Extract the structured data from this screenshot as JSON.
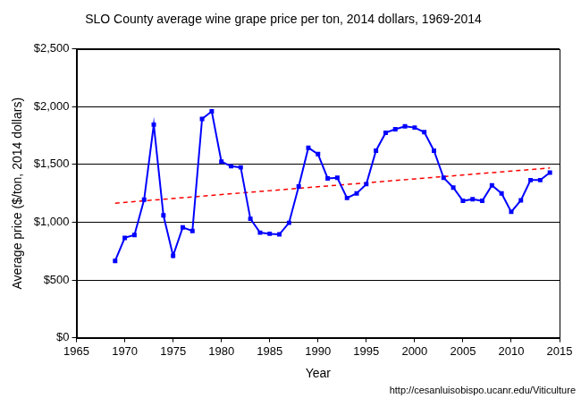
{
  "chart_data": {
    "type": "line",
    "title": "SLO County average wine grape price per ton, 2014 dollars, 1969-2014",
    "x_label": "Year",
    "y_label": "Average price ($/ton, 2014 dollars)",
    "annotation": "http://cesanluisobispo.ucanr.edu/Viticulture",
    "x": [
      1969,
      1970,
      1971,
      1972,
      1973,
      1974,
      1975,
      1976,
      1977,
      1978,
      1979,
      1980,
      1981,
      1982,
      1983,
      1984,
      1985,
      1986,
      1987,
      1988,
      1989,
      1990,
      1991,
      1992,
      1993,
      1994,
      1995,
      1996,
      1997,
      1998,
      1999,
      2000,
      2001,
      2002,
      2003,
      2004,
      2005,
      2006,
      2007,
      2008,
      2009,
      2010,
      2011,
      2012,
      2013,
      2014
    ],
    "series": [
      {
        "color": "#0000ff",
        "marker": "square",
        "line_style": "solid",
        "values": [
          665,
          865,
          890,
          1195,
          1845,
          1060,
          710,
          955,
          925,
          1895,
          1960,
          1525,
          1485,
          1475,
          1030,
          910,
          900,
          895,
          995,
          1310,
          1645,
          1590,
          1380,
          1385,
          1210,
          1250,
          1330,
          1620,
          1775,
          1805,
          1830,
          1820,
          1780,
          1620,
          1385,
          1300,
          1185,
          1200,
          1185,
          1320,
          1250,
          1090,
          1190,
          1365,
          1365,
          1430
        ]
      },
      {
        "color": "#ff0000",
        "marker": "none",
        "line_style": "dashed",
        "x": [
          1969,
          2014
        ],
        "values": [
          1165,
          1470
        ]
      }
    ],
    "xlim": [
      1965,
      2015
    ],
    "xticks": [
      1965,
      1970,
      1975,
      1980,
      1985,
      1990,
      1995,
      2000,
      2005,
      2010,
      2015
    ],
    "ylim": [
      0,
      2500
    ],
    "yticks": [
      {
        "value": 0,
        "label": "$0"
      },
      {
        "value": 500,
        "label": "$500"
      },
      {
        "value": 1000,
        "label": "$1,000"
      },
      {
        "value": 1500,
        "label": "$1,500"
      },
      {
        "value": 2000,
        "label": "$2,000"
      },
      {
        "value": 2500,
        "label": "$2,500"
      }
    ],
    "grid": true
  }
}
